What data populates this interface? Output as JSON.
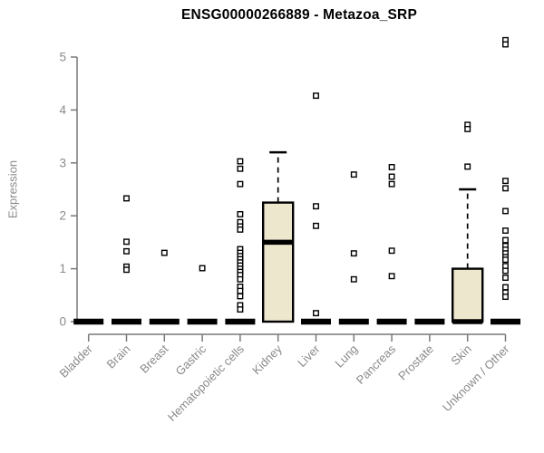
{
  "chart_data": {
    "type": "boxplot",
    "title": "ENSG00000266889 - Metazoa_SRP",
    "ylabel": "Expression",
    "xlabel": "",
    "yticks": [
      0,
      1,
      2,
      3,
      4,
      5
    ],
    "ylim": [
      0,
      5.4
    ],
    "grid": false,
    "legend": "none",
    "categories": [
      "Bladder",
      "Brain",
      "Breast",
      "Gastric",
      "Hematopoietic cells",
      "Kidney",
      "Liver",
      "Lung",
      "Pancreas",
      "Prostate",
      "Skin",
      "Unknown / Other"
    ],
    "boxes": [
      {
        "category": "Bladder",
        "q1": 0,
        "median": 0,
        "q3": 0,
        "whisker_low": 0,
        "whisker_high": 0,
        "outliers": []
      },
      {
        "category": "Brain",
        "q1": 0,
        "median": 0,
        "q3": 0,
        "whisker_low": 0,
        "whisker_high": 0,
        "outliers": [
          2.33,
          1.51,
          1.33,
          1.04,
          0.98
        ]
      },
      {
        "category": "Breast",
        "q1": 0,
        "median": 0,
        "q3": 0,
        "whisker_low": 0,
        "whisker_high": 0,
        "outliers": [
          1.3
        ]
      },
      {
        "category": "Gastric",
        "q1": 0,
        "median": 0,
        "q3": 0,
        "whisker_low": 0,
        "whisker_high": 0,
        "outliers": [
          1.01
        ]
      },
      {
        "category": "Hematopoietic cells",
        "q1": 0,
        "median": 0,
        "q3": 0,
        "whisker_low": 0,
        "whisker_high": 0,
        "outliers": [
          3.03,
          2.89,
          2.6,
          2.03,
          1.88,
          1.8,
          1.74,
          1.37,
          1.3,
          1.24,
          1.18,
          1.12,
          1.06,
          1.0,
          0.94,
          0.88,
          0.8,
          0.66,
          0.58,
          0.48,
          0.31,
          0.23
        ]
      },
      {
        "category": "Kidney",
        "q1": 0,
        "median": 1.5,
        "q3": 2.25,
        "whisker_low": 0,
        "whisker_high": 3.2,
        "outliers": []
      },
      {
        "category": "Liver",
        "q1": 0,
        "median": 0,
        "q3": 0,
        "whisker_low": 0,
        "whisker_high": 0,
        "outliers": [
          4.27,
          2.18,
          1.81,
          0.16
        ]
      },
      {
        "category": "Lung",
        "q1": 0,
        "median": 0,
        "q3": 0,
        "whisker_low": 0,
        "whisker_high": 0,
        "outliers": [
          2.78,
          1.29,
          0.8
        ]
      },
      {
        "category": "Pancreas",
        "q1": 0,
        "median": 0,
        "q3": 0,
        "whisker_low": 0,
        "whisker_high": 0,
        "outliers": [
          2.92,
          2.74,
          2.6,
          1.34,
          0.86
        ]
      },
      {
        "category": "Prostate",
        "q1": 0,
        "median": 0,
        "q3": 0,
        "whisker_low": 0,
        "whisker_high": 0,
        "outliers": []
      },
      {
        "category": "Skin",
        "q1": 0,
        "median": 0,
        "q3": 1.0,
        "whisker_low": 0,
        "whisker_high": 2.5,
        "outliers": [
          3.72,
          3.64,
          2.93
        ]
      },
      {
        "category": "Unknown / Other",
        "q1": 0,
        "median": 0,
        "q3": 0,
        "whisker_low": 0,
        "whisker_high": 0,
        "outliers": [
          5.32,
          5.24,
          2.66,
          2.52,
          2.09,
          1.72,
          1.54,
          1.43,
          1.36,
          1.29,
          1.22,
          1.17,
          1.05,
          0.96,
          0.83,
          0.65,
          0.55,
          0.47
        ]
      }
    ],
    "colors": {
      "box_fill": "#EDE7CE",
      "box_stroke": "#000000",
      "median": "#000000",
      "outlier_fill": "#FFFFFF",
      "axis_line": "#787878",
      "tick_label": "#8A8A8A",
      "title": "#000000",
      "background": "#FFFFFF"
    }
  }
}
